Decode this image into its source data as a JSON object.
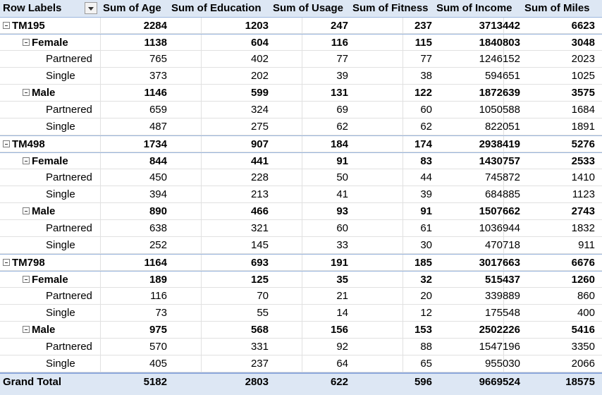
{
  "headers": {
    "row_labels": "Row Labels",
    "sum_age": "Sum of Age",
    "sum_education": "Sum of Education",
    "sum_usage": "Sum of Usage",
    "sum_fitness": "Sum of Fitness",
    "sum_income": "Sum of Income",
    "sum_miles": "Sum of Miles"
  },
  "rows": [
    [
      "TM195",
      "2284",
      "1203",
      "247",
      "237",
      "3713442",
      "6623"
    ],
    [
      "Female",
      "1138",
      "604",
      "116",
      "115",
      "1840803",
      "3048"
    ],
    [
      "Partnered",
      "765",
      "402",
      "77",
      "77",
      "1246152",
      "2023"
    ],
    [
      "Single",
      "373",
      "202",
      "39",
      "38",
      "594651",
      "1025"
    ],
    [
      "Male",
      "1146",
      "599",
      "131",
      "122",
      "1872639",
      "3575"
    ],
    [
      "Partnered",
      "659",
      "324",
      "69",
      "60",
      "1050588",
      "1684"
    ],
    [
      "Single",
      "487",
      "275",
      "62",
      "62",
      "822051",
      "1891"
    ],
    [
      "TM498",
      "1734",
      "907",
      "184",
      "174",
      "2938419",
      "5276"
    ],
    [
      "Female",
      "844",
      "441",
      "91",
      "83",
      "1430757",
      "2533"
    ],
    [
      "Partnered",
      "450",
      "228",
      "50",
      "44",
      "745872",
      "1410"
    ],
    [
      "Single",
      "394",
      "213",
      "41",
      "39",
      "684885",
      "1123"
    ],
    [
      "Male",
      "890",
      "466",
      "93",
      "91",
      "1507662",
      "2743"
    ],
    [
      "Partnered",
      "638",
      "321",
      "60",
      "61",
      "1036944",
      "1832"
    ],
    [
      "Single",
      "252",
      "145",
      "33",
      "30",
      "470718",
      "911"
    ],
    [
      "TM798",
      "1164",
      "693",
      "191",
      "185",
      "3017663",
      "6676"
    ],
    [
      "Female",
      "189",
      "125",
      "35",
      "32",
      "515437",
      "1260"
    ],
    [
      "Partnered",
      "116",
      "70",
      "21",
      "20",
      "339889",
      "860"
    ],
    [
      "Single",
      "73",
      "55",
      "14",
      "12",
      "175548",
      "400"
    ],
    [
      "Male",
      "975",
      "568",
      "156",
      "153",
      "2502226",
      "5416"
    ],
    [
      "Partnered",
      "570",
      "331",
      "92",
      "88",
      "1547196",
      "3350"
    ],
    [
      "Single",
      "405",
      "237",
      "64",
      "65",
      "955030",
      "2066"
    ]
  ],
  "grand_total": [
    "Grand Total",
    "5182",
    "2803",
    "622",
    "596",
    "9669524",
    "18575"
  ]
}
